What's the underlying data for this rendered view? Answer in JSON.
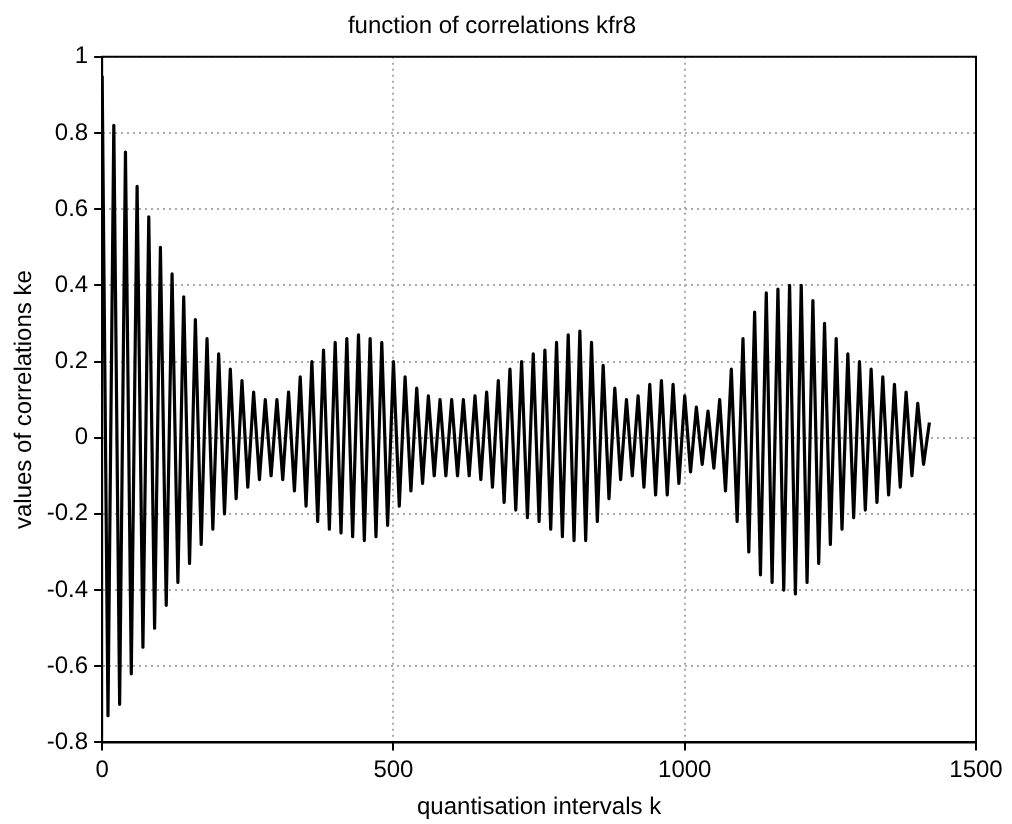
{
  "chart_data": {
    "type": "line",
    "title": "function of correlations kfr8",
    "xlabel": "quantisation intervals k",
    "ylabel": "values of correlations ke",
    "x": [
      0,
      10,
      20,
      30,
      40,
      50,
      60,
      70,
      80,
      90,
      100,
      110,
      120,
      130,
      140,
      150,
      160,
      170,
      180,
      190,
      200,
      210,
      220,
      230,
      240,
      250,
      260,
      270,
      280,
      290,
      300,
      310,
      320,
      330,
      340,
      350,
      360,
      370,
      380,
      390,
      400,
      410,
      420,
      430,
      440,
      450,
      460,
      470,
      480,
      490,
      500,
      510,
      520,
      530,
      540,
      550,
      560,
      570,
      580,
      590,
      600,
      610,
      620,
      630,
      640,
      650,
      660,
      670,
      680,
      690,
      700,
      710,
      720,
      730,
      740,
      750,
      760,
      770,
      780,
      790,
      800,
      810,
      820,
      830,
      840,
      850,
      860,
      870,
      880,
      890,
      900,
      910,
      920,
      930,
      940,
      950,
      960,
      970,
      980,
      990,
      1000,
      1010,
      1020,
      1030,
      1040,
      1050,
      1060,
      1070,
      1080,
      1090,
      1100,
      1110,
      1120,
      1130,
      1140,
      1150,
      1160,
      1170,
      1180,
      1190,
      1200,
      1210,
      1220,
      1230,
      1240,
      1250,
      1260,
      1270,
      1280,
      1290,
      1300,
      1310,
      1320,
      1330,
      1340,
      1350,
      1360,
      1370,
      1380,
      1390,
      1400,
      1410,
      1420
    ],
    "series": [
      {
        "color": "#000000",
        "values": [
          0.95,
          -0.73,
          0.82,
          -0.7,
          0.75,
          -0.62,
          0.66,
          -0.55,
          0.58,
          -0.5,
          0.5,
          -0.44,
          0.43,
          -0.38,
          0.37,
          -0.33,
          0.31,
          -0.28,
          0.26,
          -0.24,
          0.22,
          -0.2,
          0.18,
          -0.16,
          0.15,
          -0.13,
          0.12,
          -0.11,
          0.1,
          -0.1,
          0.1,
          -0.11,
          0.12,
          -0.14,
          0.16,
          -0.18,
          0.2,
          -0.22,
          0.23,
          -0.24,
          0.25,
          -0.25,
          0.26,
          -0.26,
          0.27,
          -0.27,
          0.26,
          -0.26,
          0.25,
          -0.23,
          0.2,
          -0.18,
          0.16,
          -0.14,
          0.13,
          -0.12,
          0.11,
          -0.1,
          0.1,
          -0.1,
          0.1,
          -0.1,
          0.1,
          -0.1,
          0.11,
          -0.11,
          0.12,
          -0.13,
          0.15,
          -0.17,
          0.18,
          -0.19,
          0.2,
          -0.21,
          0.22,
          -0.22,
          0.23,
          -0.24,
          0.25,
          -0.26,
          0.27,
          -0.27,
          0.28,
          -0.27,
          0.25,
          -0.22,
          0.19,
          -0.16,
          0.13,
          -0.11,
          0.1,
          -0.1,
          0.11,
          -0.13,
          0.14,
          -0.15,
          0.15,
          -0.15,
          0.14,
          -0.12,
          0.11,
          -0.09,
          0.08,
          -0.07,
          0.07,
          -0.08,
          0.1,
          -0.14,
          0.18,
          -0.22,
          0.26,
          -0.3,
          0.33,
          -0.36,
          0.38,
          -0.38,
          0.39,
          -0.4,
          0.4,
          -0.41,
          0.4,
          -0.38,
          0.36,
          -0.33,
          0.3,
          -0.28,
          0.26,
          -0.24,
          0.22,
          -0.21,
          0.2,
          -0.19,
          0.18,
          -0.17,
          0.16,
          -0.15,
          0.14,
          -0.13,
          0.12,
          -0.1,
          0.09,
          -0.07,
          0.04
        ]
      }
    ],
    "xlim": [
      0,
      1500
    ],
    "xticks": [
      0,
      500,
      1000,
      1500
    ],
    "ylim": [
      -0.8,
      1
    ],
    "yticks": [
      -0.8,
      -0.6,
      -0.4,
      -0.2,
      0,
      0.2,
      0.4,
      0.6,
      0.8,
      1
    ],
    "grid": true,
    "legend": false,
    "marker": "none",
    "line_style": "solid"
  }
}
